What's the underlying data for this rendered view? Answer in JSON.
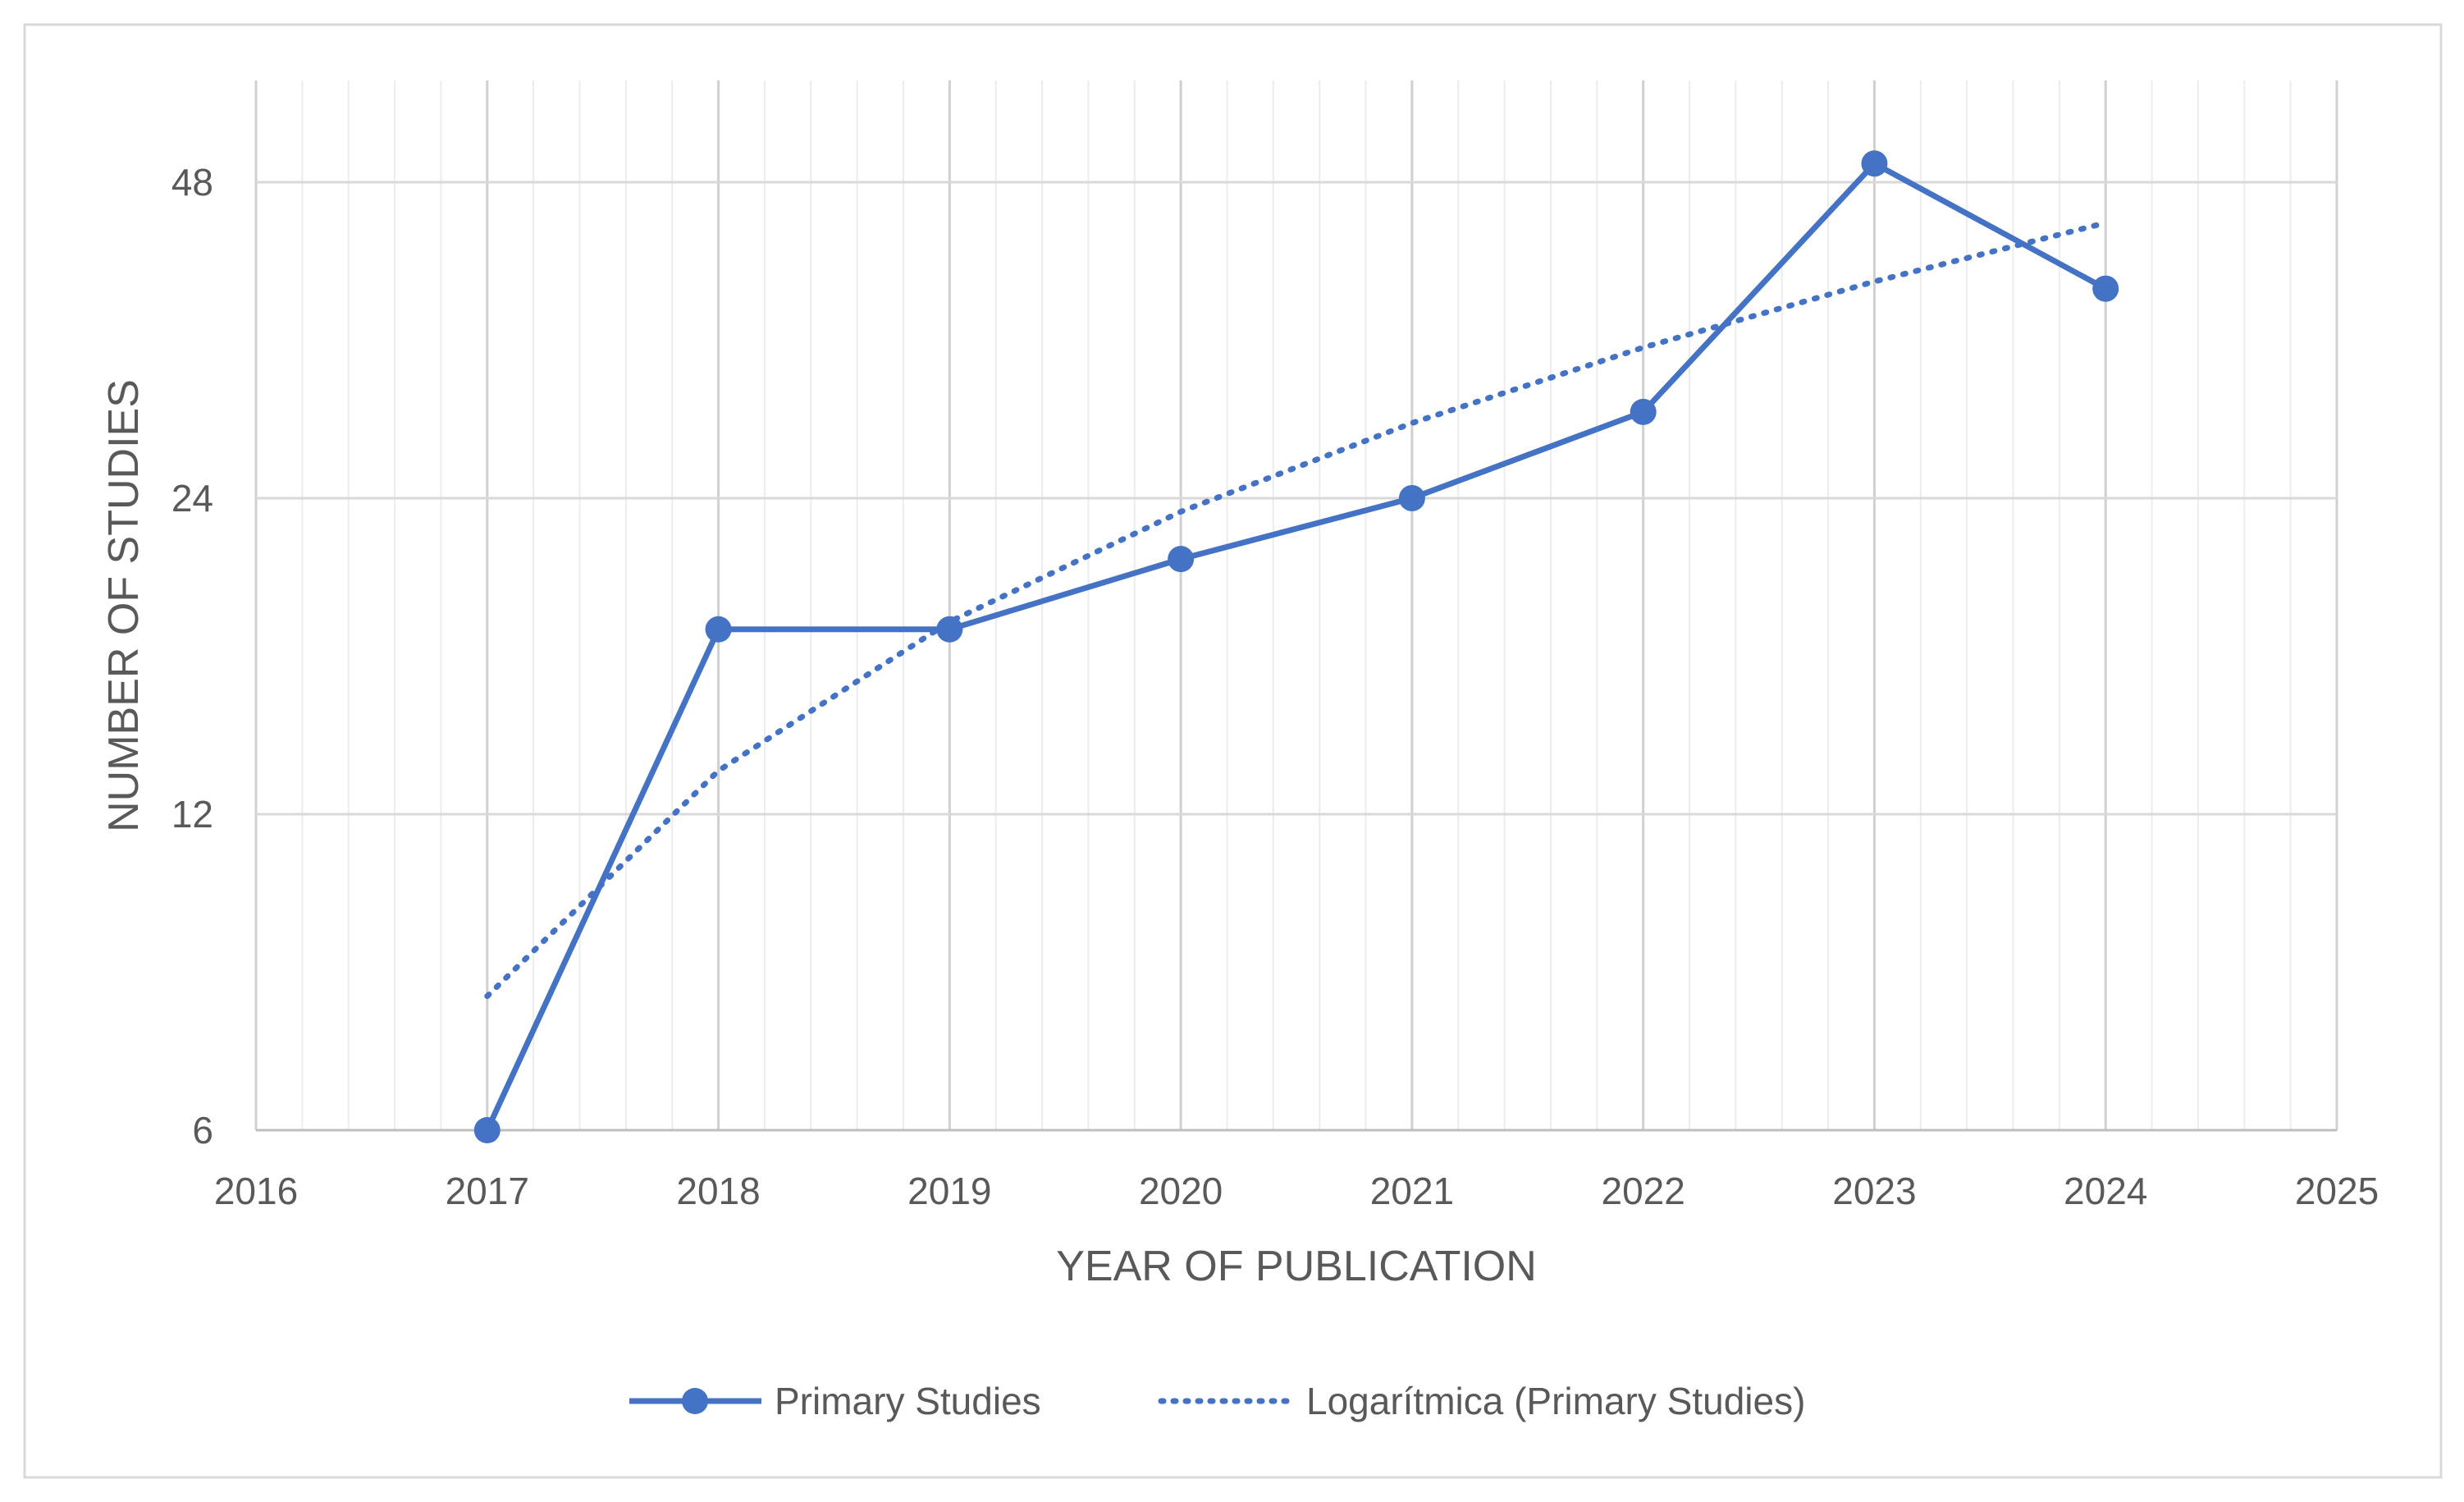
{
  "chart_data": {
    "type": "line",
    "title": "",
    "xlabel": "YEAR OF PUBLICATION",
    "ylabel": "NUMBER OF STUDIES",
    "x_scale": "linear",
    "y_scale": "log2",
    "xlim": [
      2016,
      2025
    ],
    "ylim": [
      6,
      60
    ],
    "x_ticks": [
      "2016",
      "2017",
      "2018",
      "2019",
      "2020",
      "2021",
      "2022",
      "2023",
      "2024",
      "2025"
    ],
    "y_ticks": [
      "6",
      "12",
      "24",
      "48"
    ],
    "grid": true,
    "legend_position": "bottom",
    "series": [
      {
        "name": "Primary Studies",
        "style": "solid-line-with-markers",
        "color": "#4472C4",
        "x": [
          2017,
          2018,
          2019,
          2020,
          2021,
          2022,
          2023,
          2024
        ],
        "values": [
          6,
          18,
          18,
          21,
          24,
          29,
          50,
          38
        ]
      },
      {
        "name": "Logarítmica (Primary Studies)",
        "style": "dotted-trendline",
        "color": "#4472C4",
        "x": [
          2017,
          2018,
          2019,
          2020,
          2021,
          2022,
          2023,
          2024
        ],
        "values": [
          8.05,
          13.2,
          18.3,
          23.3,
          28.3,
          33.4,
          38.6,
          43.9
        ]
      }
    ]
  }
}
